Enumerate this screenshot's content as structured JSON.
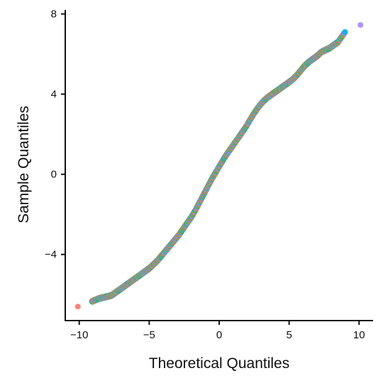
{
  "chart_data": {
    "type": "scatter",
    "title": "",
    "xlabel": "Theoretical Quantiles",
    "ylabel": "Sample Quantiles",
    "xlim": [
      -11,
      11
    ],
    "ylim": [
      -7.3,
      8.2
    ],
    "x_ticks": [
      -10,
      -5,
      0,
      5,
      10
    ],
    "x_tick_labels": [
      "−10",
      "−5",
      "0",
      "5",
      "10"
    ],
    "y_ticks": [
      -4,
      0,
      4,
      8
    ],
    "y_tick_labels": [
      "−4",
      "0",
      "4",
      "8"
    ],
    "grid": false,
    "legend": "none",
    "colors": [
      "#f8766d",
      "#c49a00",
      "#53b400",
      "#00c094",
      "#00b6eb",
      "#a58aff",
      "#fb61d7"
    ],
    "points": [
      [
        -10.1,
        -6.6
      ],
      [
        -9.1,
        -6.35
      ],
      [
        -8.6,
        -6.2
      ],
      [
        -8.3,
        -6.15
      ],
      [
        -8.0,
        -6.1
      ],
      [
        -7.7,
        -6.05
      ],
      [
        -7.4,
        -5.9
      ],
      [
        -7.1,
        -5.75
      ],
      [
        -6.8,
        -5.6
      ],
      [
        -6.5,
        -5.45
      ],
      [
        -6.2,
        -5.3
      ],
      [
        -5.9,
        -5.15
      ],
      [
        -5.6,
        -5.0
      ],
      [
        -5.3,
        -4.85
      ],
      [
        -5.0,
        -4.7
      ],
      [
        -4.7,
        -4.5
      ],
      [
        -4.4,
        -4.3
      ],
      [
        -4.1,
        -4.05
      ],
      [
        -3.8,
        -3.8
      ],
      [
        -3.5,
        -3.55
      ],
      [
        -3.2,
        -3.3
      ],
      [
        -2.9,
        -3.05
      ],
      [
        -2.6,
        -2.75
      ],
      [
        -2.3,
        -2.45
      ],
      [
        -2.0,
        -2.15
      ],
      [
        -1.7,
        -1.8
      ],
      [
        -1.4,
        -1.4
      ],
      [
        -1.1,
        -1.0
      ],
      [
        -0.8,
        -0.6
      ],
      [
        -0.5,
        -0.2
      ],
      [
        -0.2,
        0.15
      ],
      [
        0.1,
        0.5
      ],
      [
        0.4,
        0.85
      ],
      [
        0.7,
        1.15
      ],
      [
        1.0,
        1.45
      ],
      [
        1.3,
        1.75
      ],
      [
        1.6,
        2.05
      ],
      [
        1.9,
        2.35
      ],
      [
        2.2,
        2.7
      ],
      [
        2.5,
        3.05
      ],
      [
        2.8,
        3.35
      ],
      [
        3.1,
        3.6
      ],
      [
        3.4,
        3.8
      ],
      [
        3.7,
        3.95
      ],
      [
        4.0,
        4.1
      ],
      [
        4.3,
        4.25
      ],
      [
        4.6,
        4.4
      ],
      [
        4.9,
        4.55
      ],
      [
        5.2,
        4.7
      ],
      [
        5.5,
        4.9
      ],
      [
        5.8,
        5.15
      ],
      [
        6.1,
        5.4
      ],
      [
        6.4,
        5.6
      ],
      [
        6.7,
        5.75
      ],
      [
        7.0,
        5.9
      ],
      [
        7.3,
        6.1
      ],
      [
        7.6,
        6.2
      ],
      [
        7.9,
        6.3
      ],
      [
        8.2,
        6.45
      ],
      [
        8.5,
        6.6
      ],
      [
        9.0,
        7.1
      ],
      [
        10.1,
        7.45
      ]
    ]
  }
}
